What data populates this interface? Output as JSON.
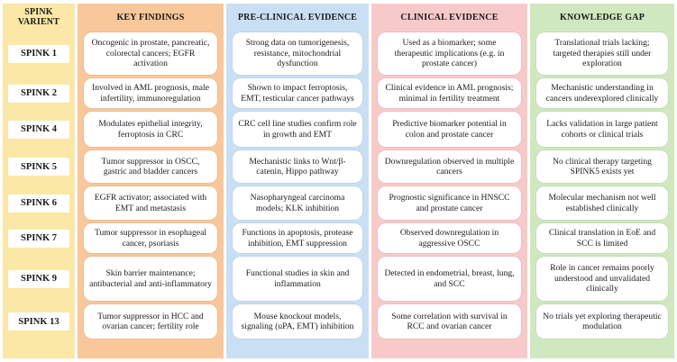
{
  "headers": {
    "variant": "SPINK VARIENT",
    "key_findings": "KEY FINDINGS",
    "preclinical": "PRE-CLINICAL EVIDENCE",
    "clinical": "CLINICAL EVIDENCE",
    "gap": "KNOWLEDGE GAP"
  },
  "colors": {
    "variant_bg": "#fbe7a6",
    "key_findings_bg": "#f8c79a",
    "preclinical_bg": "#c9dff3",
    "clinical_bg": "#f7c9c9",
    "gap_bg": "#cfe8bf"
  },
  "rows": [
    {
      "variant": "SPINK 1",
      "key_findings": "Oncogenic in prostate, pancreatic, colorectal cancers; EGFR activation",
      "preclinical": "Strong data on tumorigenesis, resistance, mitochondrial dysfunction",
      "clinical": "Used as a biomarker; some therapeutic implications (e.g. in prostate cancer)",
      "gap": "Translational trials lacking; targeted therapies still under exploration"
    },
    {
      "variant": "SPINK 2",
      "key_findings": "Involved in AML prognosis, male infertility, immunoregulation",
      "preclinical": "Shown to impact ferroptosis, EMT, testicular cancer pathways",
      "clinical": "Clinical evidence in AML prognosis; minimal in fertility treatment",
      "gap": "Mechanistic understanding in cancers underexplored clinically"
    },
    {
      "variant": "SPINK 4",
      "key_findings": "Modulates epithelial integrity, ferroptosis in CRC",
      "preclinical": "CRC cell line studies confirm role in growth and EMT",
      "clinical": "Predictive biomarker potential in colon and prostate cancer",
      "gap": "Lacks validation in large patient cohorts or clinical trials"
    },
    {
      "variant": "SPINK 5",
      "key_findings": "Tumor suppressor in OSCC, gastric and bladder cancers",
      "preclinical": "Mechanistic links to Wnt/β-catenin, Hippo pathway",
      "clinical": "Downregulation observed in multiple cancers",
      "gap": "No clinical therapy targeting SPINK5 exists yet"
    },
    {
      "variant": "SPINK 6",
      "key_findings": "EGFR activator; associated with EMT and metastasis",
      "preclinical": "Nasopharyngeal carcinoma models; KLK inhibition",
      "clinical": "Prognostic significance in HNSCC and prostate cancer",
      "gap": "Molecular mechanism not well established clinically"
    },
    {
      "variant": "SPINK 7",
      "key_findings": "Tumor suppressor in esophageal cancer, psoriasis",
      "preclinical": "Functions in apoptosis, protease inhibition, EMT suppression",
      "clinical": "Observed downregulation in aggressive OSCC",
      "gap": "Clinical translation in EoE and SCC is limited"
    },
    {
      "variant": "SPINK 9",
      "key_findings": "Skin barrier maintenance; antibacterial and anti-inflammatory",
      "preclinical": "Functional studies in skin and inflammation",
      "clinical": "Detected in endometrial, breast, lung, and SCC",
      "gap": "Role in cancer remains poorly understood and unvalidated clinically"
    },
    {
      "variant": "SPINK 13",
      "key_findings": "Tumor suppressor in HCC and ovarian cancer; fertility role",
      "preclinical": "Mouse knockout models, signaling (uPA, EMT) inhibition",
      "clinical": "Some correlation with survival in RCC and ovarian cancer",
      "gap": "No trials yet exploring therapeutic modulation"
    }
  ]
}
